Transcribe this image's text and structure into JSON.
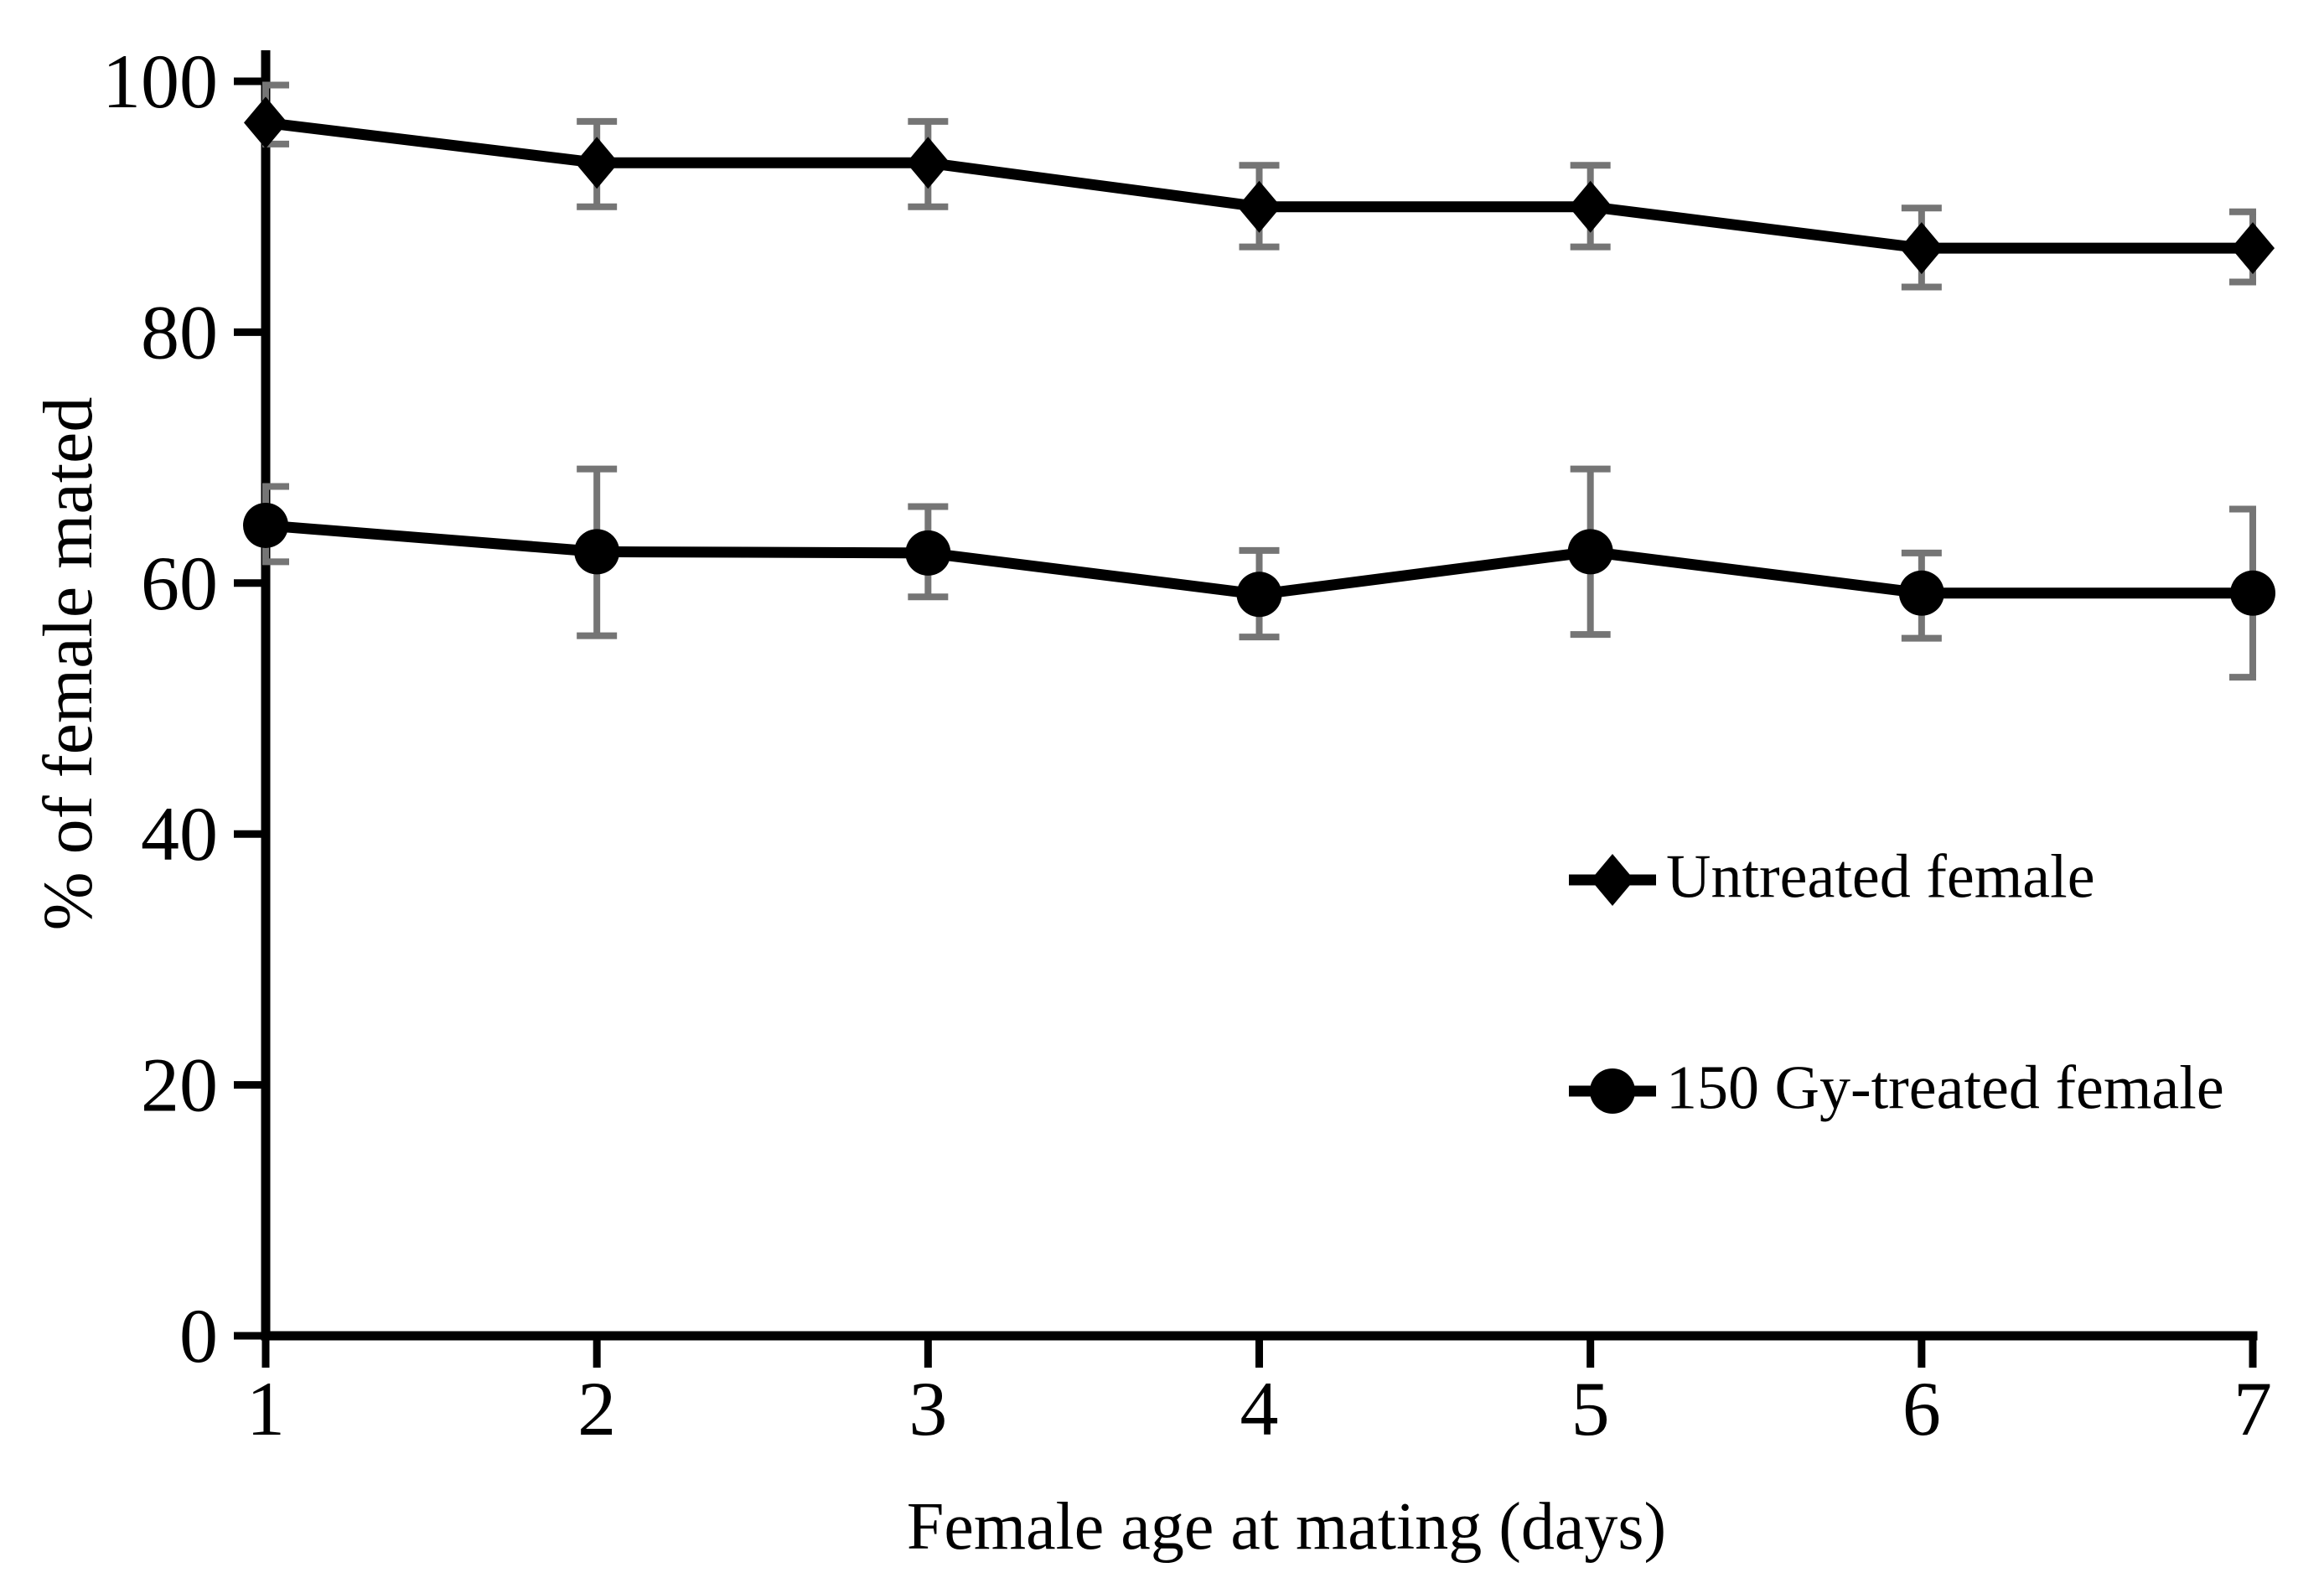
{
  "figure": {
    "background": "#ffffff",
    "axis_color": "#000000",
    "text_color": "#000000",
    "error_bar_color": "#757575"
  },
  "chart_data": {
    "type": "line",
    "title": "",
    "xlabel": "Female age at mating (days)",
    "ylabel": "% of female mated",
    "x": [
      1,
      2,
      3,
      4,
      5,
      6,
      7
    ],
    "xlim": [
      1,
      7
    ],
    "ylim": [
      0,
      100
    ],
    "yticks": [
      100,
      80,
      60,
      40,
      20,
      0
    ],
    "grid": false,
    "legend_position": "right-middle",
    "error_bars": true,
    "series": [
      {
        "name": "Untreated female",
        "marker": "diamond",
        "color": "#000000",
        "values": [
          96.7,
          93.5,
          93.5,
          90.0,
          90.0,
          86.7,
          86.7
        ],
        "err_up": [
          3.0,
          3.3,
          3.3,
          3.3,
          3.3,
          3.2,
          2.9
        ],
        "err_down": [
          1.7,
          3.5,
          3.5,
          3.2,
          3.2,
          3.1,
          2.7
        ],
        "cap_style": [
          "right",
          "full",
          "full",
          "full",
          "full",
          "full",
          "left"
        ]
      },
      {
        "name": "150 Gy-treated female",
        "marker": "circle",
        "color": "#000000",
        "values": [
          64.6,
          62.5,
          62.4,
          59.1,
          62.5,
          59.2,
          59.2
        ],
        "err_up": [
          3.1,
          6.6,
          3.7,
          3.5,
          6.6,
          3.2,
          6.7
        ],
        "err_down": [
          2.9,
          6.7,
          3.5,
          3.4,
          6.6,
          3.6,
          6.7
        ],
        "cap_style": [
          "right",
          "full",
          "full",
          "full",
          "full",
          "full",
          "left"
        ]
      }
    ]
  }
}
